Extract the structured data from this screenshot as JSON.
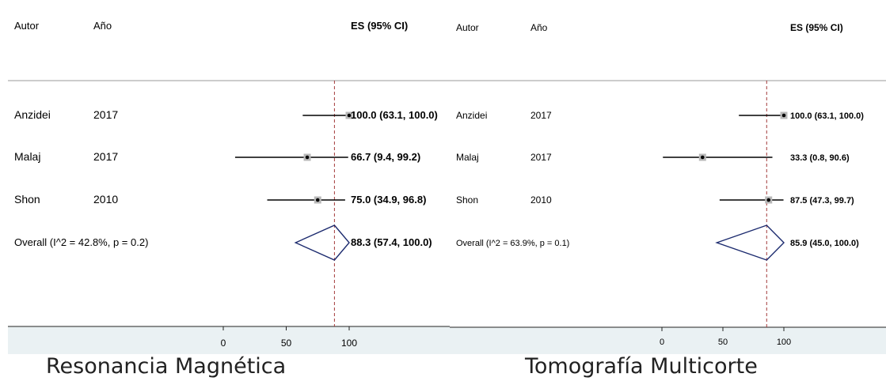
{
  "chart_data": [
    {
      "type": "forest",
      "caption": "Resonancia Magnética",
      "headers": {
        "author": "Autor",
        "year": "Año",
        "es": "ES (95% CI)"
      },
      "xlim": [
        0,
        100
      ],
      "xticks": [
        0,
        50,
        100
      ],
      "reference_line": 88.3,
      "studies": [
        {
          "author": "Anzidei",
          "year": "2017",
          "es": 100.0,
          "lo": 63.1,
          "hi": 100.0,
          "label": "100.0 (63.1, 100.0)"
        },
        {
          "author": "Malaj",
          "year": "2017",
          "es": 66.7,
          "lo": 9.4,
          "hi": 99.2,
          "label": "66.7 (9.4, 99.2)"
        },
        {
          "author": "Shon",
          "year": "2010",
          "es": 75.0,
          "lo": 34.9,
          "hi": 96.8,
          "label": "75.0 (34.9, 96.8)"
        }
      ],
      "overall": {
        "label": "Overall  (I^2 = 42.8%, p = 0.2)",
        "es": 88.3,
        "lo": 57.4,
        "hi": 100.0,
        "text": "88.3 (57.4, 100.0)"
      }
    },
    {
      "type": "forest",
      "caption": "Tomografía Multicorte",
      "headers": {
        "author": "Autor",
        "year": "Año",
        "es": "ES (95% CI)"
      },
      "xlim": [
        0,
        100
      ],
      "xticks": [
        0,
        50,
        100
      ],
      "reference_line": 85.9,
      "studies": [
        {
          "author": "Anzidei",
          "year": "2017",
          "es": 100.0,
          "lo": 63.1,
          "hi": 100.0,
          "label": "100.0 (63.1, 100.0)"
        },
        {
          "author": "Malaj",
          "year": "2017",
          "es": 33.3,
          "lo": 0.8,
          "hi": 90.6,
          "label": "33.3 (0.8, 90.6)"
        },
        {
          "author": "Shon",
          "year": "2010",
          "es": 87.5,
          "lo": 47.3,
          "hi": 99.7,
          "label": "87.5 (47.3, 99.7)"
        }
      ],
      "overall": {
        "label": "Overall  (I^2 = 63.9%, p = 0.1)",
        "es": 85.9,
        "lo": 45.0,
        "hi": 100.0,
        "text": "85.9 (45.0, 100.0)"
      }
    }
  ]
}
